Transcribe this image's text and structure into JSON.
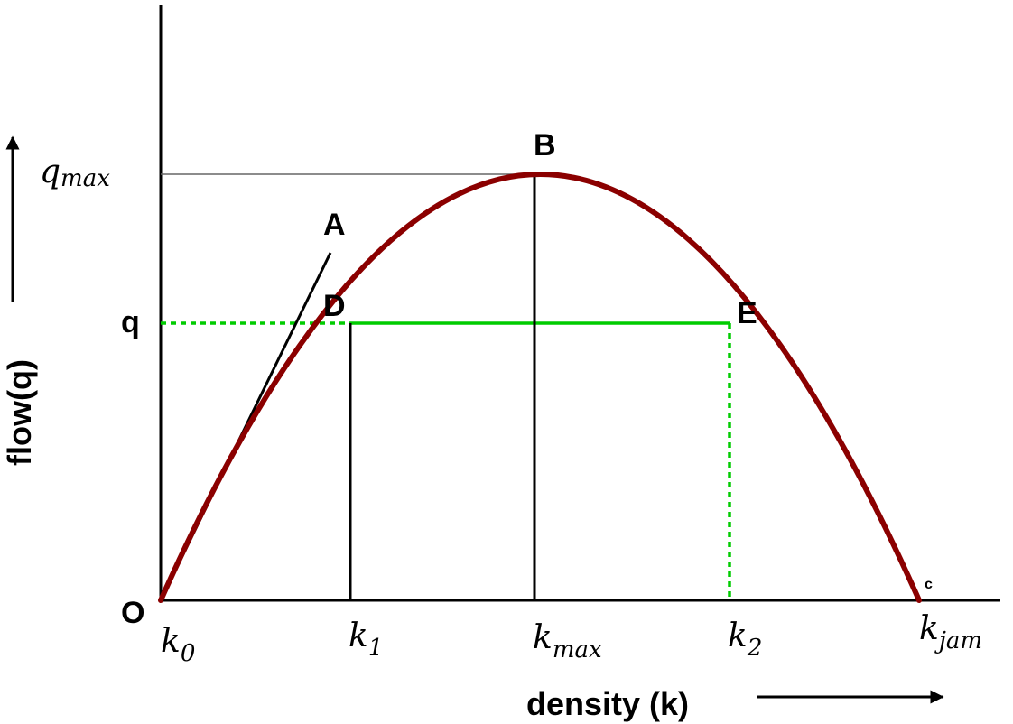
{
  "labels": {
    "origin": "O",
    "point_a": "A",
    "point_b": "B",
    "point_d": "D",
    "point_e": "E",
    "point_c": "c",
    "y_q": "q",
    "y_qmax_base": "q",
    "y_qmax_sub": "max",
    "x_k0_base": "k",
    "x_k0_sub": "0",
    "x_k1_base": "k",
    "x_k1_sub": "1",
    "x_kmax_base": "k",
    "x_kmax_sub": "max",
    "x_k2_base": "k",
    "x_k2_sub": "2",
    "x_kjam_base": "k",
    "x_kjam_sub": "jam",
    "x_axis_title": "density (k)",
    "y_axis_title": "flow(q)"
  },
  "colors": {
    "curve": "#8b0000",
    "green": "#00cc00",
    "axis": "#000000",
    "qmax_guide": "#666666"
  }
}
